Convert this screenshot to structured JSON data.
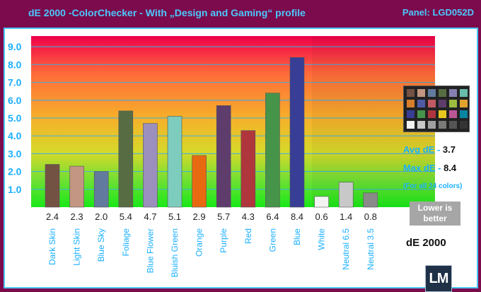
{
  "header": {
    "title": "dE 2000 -ColorChecker - With „Design and Gaming“ profile",
    "panel": "Panel: LGD052D"
  },
  "stats": {
    "avg_label": "Avg dE -",
    "avg_value": "3.7",
    "max_label": "Max dE -",
    "max_value": "8.4",
    "note": "(For all 24 colors)",
    "lower_is_better": "Lower is better",
    "metric_label": "dE 2000"
  },
  "logo": {
    "text": "LM"
  },
  "checker_colors": [
    "#735244",
    "#c29682",
    "#627a9d",
    "#576c43",
    "#8580b1",
    "#67bdaa",
    "#d67e2c",
    "#505ba6",
    "#c15a63",
    "#5e3c6c",
    "#9dbc40",
    "#e0a32e",
    "#383d96",
    "#469449",
    "#af363c",
    "#e7c71f",
    "#bb5695",
    "#0885a1",
    "#f3f3f2",
    "#c8c8c8",
    "#a0a0a0",
    "#7a7a79",
    "#555555",
    "#343434"
  ],
  "chart_data": {
    "type": "bar",
    "categories": [
      "Dark Skin",
      "Light Skin",
      "Blue Sky",
      "Foliage",
      "Blue Flower",
      "Bluish Green",
      "Orange",
      "Purple",
      "Red",
      "Green",
      "Blue",
      "White",
      "Neutral 6.5",
      "Neutral 3.5"
    ],
    "values": [
      2.4,
      2.3,
      2.0,
      5.4,
      4.7,
      5.1,
      2.9,
      5.7,
      4.3,
      6.4,
      8.4,
      0.6,
      1.4,
      0.8
    ],
    "value_labels": [
      "2.4",
      "2.3",
      "2.0",
      "5.4",
      "4.7",
      "5.1",
      "2.9",
      "5.7",
      "4.3",
      "6.4",
      "8.4",
      "0.6",
      "1.4",
      "0.8"
    ],
    "colors": [
      "#735244",
      "#c29682",
      "#627a9d",
      "#576c43",
      "#9a8fbd",
      "#7dccbd",
      "#e86a10",
      "#5e3c6c",
      "#af363c",
      "#469449",
      "#383d96",
      "#f3f3f2",
      "#c8c8c8",
      "#8a8a8a"
    ],
    "yticks": [
      "1.0",
      "2.0",
      "3.0",
      "4.0",
      "5.0",
      "6.0",
      "7.0",
      "8.0",
      "9.0"
    ],
    "ylim": [
      0,
      9.6
    ],
    "grid": true
  }
}
